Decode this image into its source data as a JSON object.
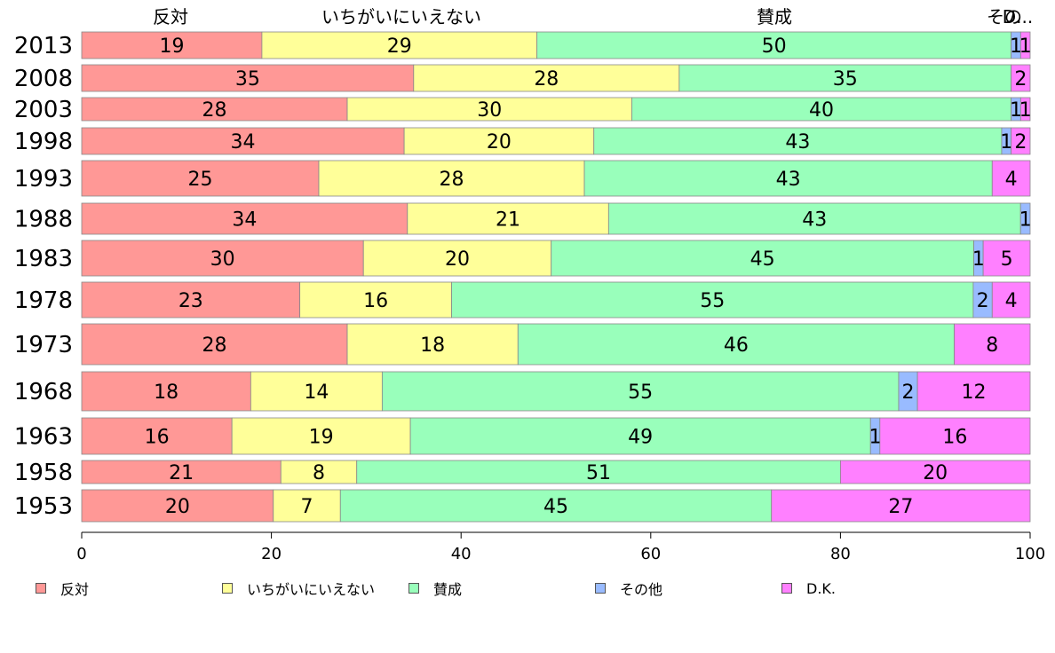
{
  "chart_data": {
    "type": "bar",
    "orientation": "horizontal",
    "stacked": true,
    "categories": [
      "2013",
      "2008",
      "2003",
      "1998",
      "1993",
      "1988",
      "1983",
      "1978",
      "1973",
      "1968",
      "1963",
      "1958",
      "1953"
    ],
    "series": [
      {
        "name": "反対",
        "color": "#ff9896",
        "values": [
          19,
          35,
          28,
          34,
          25,
          34,
          30,
          23,
          28,
          18,
          16,
          21,
          20
        ]
      },
      {
        "name": "いちがいにいえない",
        "color": "#ffff99",
        "values": [
          29,
          28,
          30,
          20,
          28,
          21,
          20,
          16,
          18,
          14,
          19,
          8,
          7
        ]
      },
      {
        "name": "賛成",
        "color": "#99ffbb",
        "values": [
          50,
          35,
          40,
          43,
          43,
          43,
          45,
          55,
          46,
          55,
          49,
          51,
          45
        ]
      },
      {
        "name": "その他",
        "color": "#99bbff",
        "values": [
          1,
          0,
          1,
          1,
          0,
          1,
          1,
          2,
          0,
          2,
          1,
          0,
          0
        ]
      },
      {
        "name": "D.K.",
        "color": "#ff80ff",
        "values": [
          1,
          2,
          1,
          2,
          4,
          0,
          5,
          4,
          8,
          12,
          16,
          20,
          27
        ]
      }
    ],
    "segment_labels": [
      [
        "19",
        "29",
        "50",
        "1",
        "1"
      ],
      [
        "35",
        "28",
        "35",
        "",
        "2"
      ],
      [
        "28",
        "30",
        "40",
        "1",
        "1"
      ],
      [
        "34",
        "20",
        "43",
        "1",
        "2"
      ],
      [
        "25",
        "28",
        "43",
        "",
        "4"
      ],
      [
        "34",
        "21",
        "43",
        "1",
        ""
      ],
      [
        "30",
        "20",
        "45",
        "1",
        "5"
      ],
      [
        "23",
        "16",
        "55",
        "2",
        "4"
      ],
      [
        "28",
        "18",
        "46",
        "",
        "8"
      ],
      [
        "18",
        "14",
        "55",
        "2",
        "12"
      ],
      [
        "16",
        "19",
        "49",
        "1",
        "16"
      ],
      [
        "21",
        "8",
        "51",
        "",
        "20"
      ],
      [
        "20",
        "7",
        "45",
        "",
        "27"
      ]
    ],
    "top_labels": [
      "反対",
      "いちがいにいえない",
      "賛成",
      "その他",
      "D.K."
    ],
    "top_label_texts": [
      "反対",
      "いちがいにいえない",
      "賛成",
      "その",
      "D..."
    ],
    "xlim": [
      0,
      100
    ],
    "xticks": [
      "0",
      "20",
      "40",
      "60",
      "80",
      "100"
    ],
    "title": "",
    "xlabel": "",
    "ylabel": "",
    "legend_position": "bottom"
  },
  "legend": {
    "items": [
      {
        "label": "反対",
        "color": "#ff9896"
      },
      {
        "label": "いちがいにいえない",
        "color": "#ffff99"
      },
      {
        "label": "賛成",
        "color": "#99ffbb"
      },
      {
        "label": "その他",
        "color": "#99bbff"
      },
      {
        "label": "D.K.",
        "color": "#ff80ff"
      }
    ]
  }
}
